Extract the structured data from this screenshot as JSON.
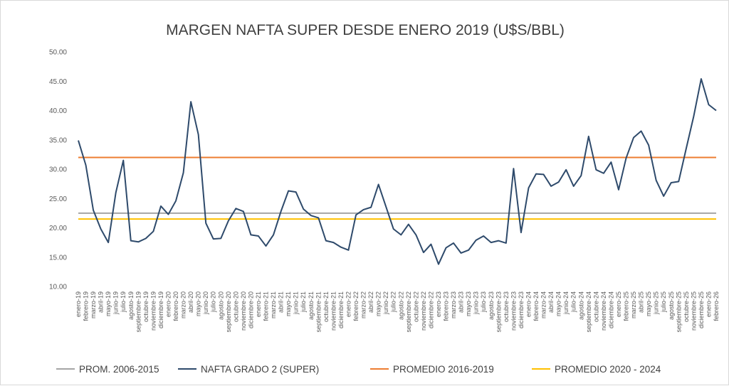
{
  "chart_data": {
    "type": "line",
    "title": "MARGEN NAFTA SUPER DESDE ENERO 2019 (U$S/BBL)",
    "xlabel": "",
    "ylabel": "",
    "ylim": [
      10,
      50
    ],
    "yticks": [
      "10.00",
      "15.00",
      "20.00",
      "25.00",
      "30.00",
      "35.00",
      "40.00",
      "45.00",
      "50.00"
    ],
    "grid": false,
    "legend_position": "bottom",
    "categories": [
      "enero-19",
      "febrero-19",
      "marzo-19",
      "abril-19",
      "mayo-19",
      "junio-19",
      "julio-19",
      "agosto-19",
      "septiembre-19",
      "octubre-19",
      "noviembre-19",
      "diciembre-19",
      "enero-20",
      "febrero-20",
      "marzo-20",
      "abril-20",
      "mayo-20",
      "junio-20",
      "julio-20",
      "agosto-20",
      "septiembre-20",
      "octubre-20",
      "noviembre-20",
      "diciembre-20",
      "enero-21",
      "febrero-21",
      "marzo-21",
      "abril-21",
      "mayo-21",
      "junio-21",
      "julio-21",
      "agosto-21",
      "septiembre-21",
      "octubre-21",
      "noviembre-21",
      "diciembre-21",
      "enero-22",
      "febrero-22",
      "marzo-22",
      "abril-22",
      "mayo-22",
      "junio-22",
      "julio-22",
      "agosto-22",
      "septiembre-22",
      "octubre-22",
      "noviembre-22",
      "diciembre-22",
      "enero-23",
      "febrero-23",
      "marzo-23",
      "abril-23",
      "mayo-23",
      "junio-23",
      "julio-23",
      "agosto-23",
      "septiembre-23",
      "octubre-23",
      "noviembre-23",
      "diciembre-23",
      "enero-24",
      "febrero-24",
      "marzo-24",
      "abril-24",
      "mayo-24",
      "junio-24",
      "julio-24",
      "agosto-24",
      "septiembre-24",
      "octubre-24",
      "noviembre-24",
      "diciembre-24",
      "enero-25",
      "febrero-25",
      "marzo-25",
      "abril-25",
      "mayo-25",
      "junio-25",
      "julio-25",
      "agosto-25",
      "septiembre-25",
      "octubre-25",
      "noviembre-25",
      "diciembre-25",
      "enero-26",
      "febrero-26"
    ],
    "series": [
      {
        "name": "PROM. 2006-2015",
        "color": "#a5a5a5",
        "constant": 22.5
      },
      {
        "name": "NAFTA GRADO 2 (SUPER)",
        "color": "#2e4a6b",
        "values": [
          34.9,
          30.7,
          23.0,
          19.8,
          17.5,
          26.0,
          31.5,
          17.8,
          17.6,
          18.2,
          19.4,
          23.7,
          22.3,
          24.6,
          29.4,
          41.5,
          35.9,
          20.8,
          18.1,
          18.2,
          21.2,
          23.3,
          22.8,
          18.8,
          18.6,
          16.9,
          18.8,
          22.8,
          26.3,
          26.1,
          23.2,
          22.1,
          21.7,
          17.8,
          17.5,
          16.7,
          16.2,
          22.2,
          23.1,
          23.5,
          27.4,
          23.6,
          19.8,
          18.8,
          20.6,
          18.8,
          15.8,
          17.2,
          13.8,
          16.6,
          17.4,
          15.7,
          16.2,
          17.9,
          18.6,
          17.5,
          17.8,
          17.4,
          30.1,
          19.2,
          26.8,
          29.2,
          29.1,
          27.1,
          27.8,
          29.9,
          27.1,
          28.9,
          35.6,
          29.9,
          29.3,
          31.2,
          26.5,
          31.9,
          35.4,
          36.5,
          34.1,
          28.1,
          25.4,
          27.7,
          27.9,
          33.5,
          39.0,
          45.4,
          41.0,
          40.0
        ]
      },
      {
        "name": "PROMEDIO 2016-2019",
        "color": "#ed7d31",
        "constant": 32.0
      },
      {
        "name": "PROMEDIO 2020 - 2024",
        "color": "#ffc000",
        "constant": 21.5
      }
    ]
  }
}
